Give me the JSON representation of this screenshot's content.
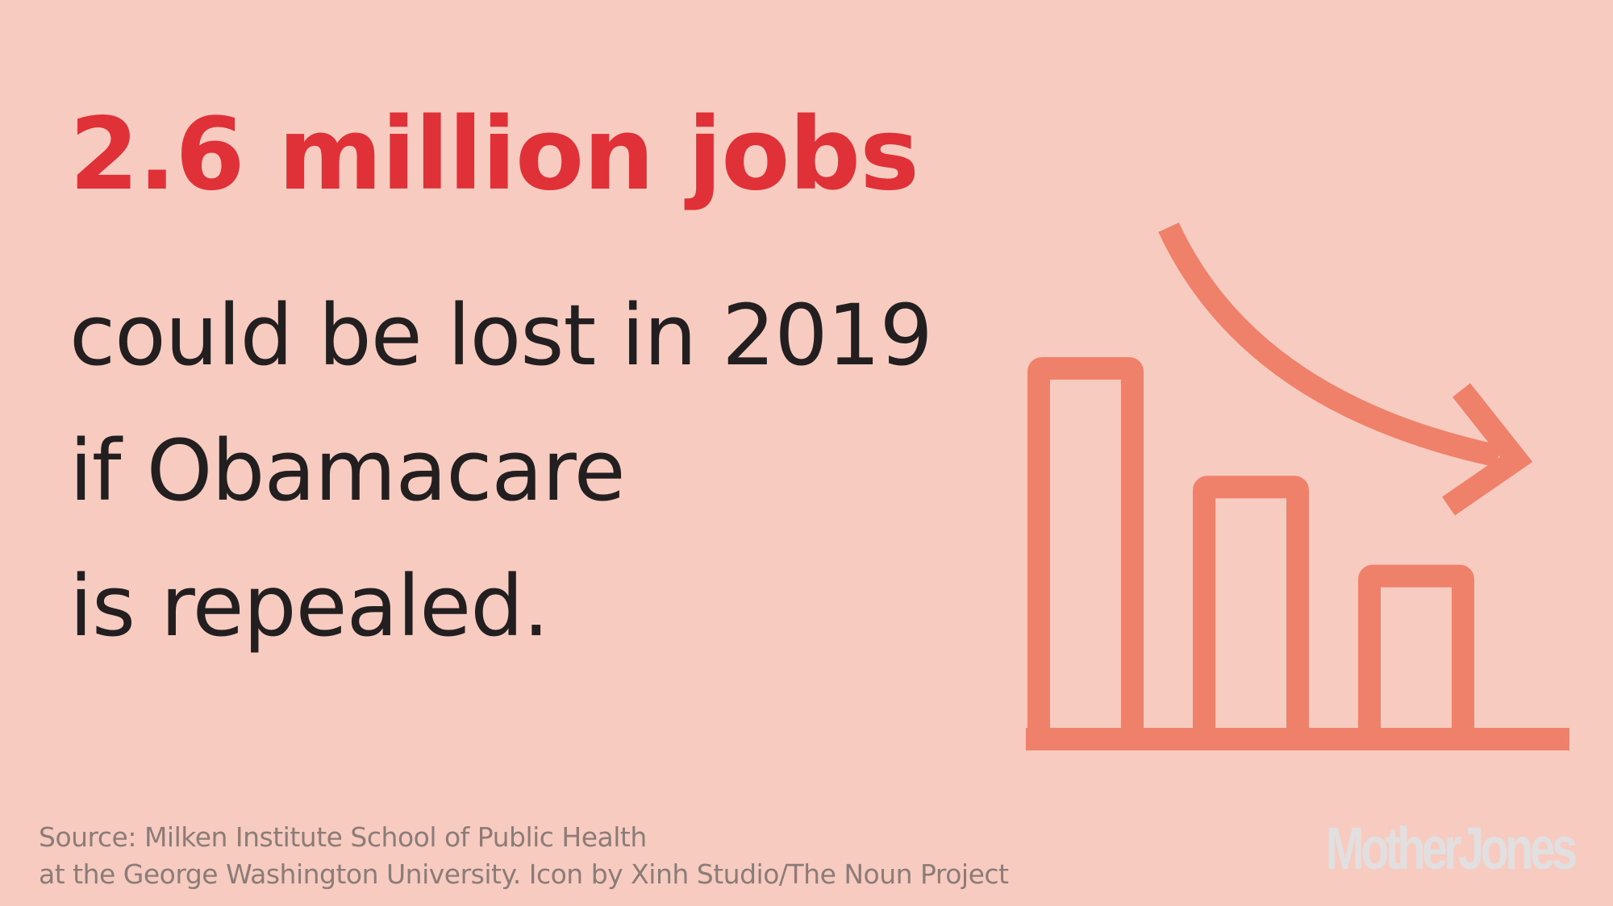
{
  "colors": {
    "background": "#f8cbc1",
    "accent_red": "#e03038",
    "text_dark": "#231f20",
    "icon": "#ef806a",
    "source_text": "#8c7c77",
    "logo": "#e1dfe0"
  },
  "headline": "2.6 million jobs",
  "body_lines": [
    "could be lost in 2019",
    "if Obamacare",
    "is repealed."
  ],
  "source_lines": [
    "Source: Milken Institute School of Public Health",
    "at the George Washington University. Icon by Xinh Studio/The Noun Project"
  ],
  "logo_text": "MotherJones",
  "icon": {
    "name": "declining-bar-chart-icon",
    "bar_levels": [
      1.0,
      0.68,
      0.44
    ]
  }
}
